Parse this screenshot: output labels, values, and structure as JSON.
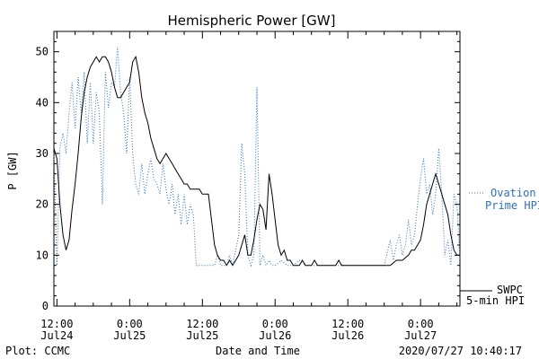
{
  "chart_data": {
    "type": "line",
    "title": "Hemispheric Power [GW]",
    "ylabel": "P [GW]",
    "xlabel": "Date and Time",
    "ylim": [
      0,
      54
    ],
    "yticks": [
      0,
      10,
      20,
      30,
      40,
      50
    ],
    "xlim": [
      -0.5,
      66.5
    ],
    "xticks": [
      {
        "x": 0,
        "line1": "12:00",
        "line2": "Jul24"
      },
      {
        "x": 12,
        "line1": "0:00",
        "line2": "Jul25"
      },
      {
        "x": 24,
        "line1": "12:00",
        "line2": "Jul25"
      },
      {
        "x": 36,
        "line1": "0:00",
        "line2": "Jul26"
      },
      {
        "x": 48,
        "line1": "12:00",
        "line2": "Jul26"
      },
      {
        "x": 60,
        "line1": "0:00",
        "line2": "Jul27"
      }
    ],
    "x_unit": "hours after 2020-07-24 12:00",
    "grid": false,
    "series": [
      {
        "name": "SWPC 5-min HPI",
        "style": "solid",
        "color": "#000000",
        "points": [
          [
            -0.5,
            31
          ],
          [
            0,
            29
          ],
          [
            0.5,
            20
          ],
          [
            1,
            14
          ],
          [
            1.5,
            11
          ],
          [
            2,
            13
          ],
          [
            2.5,
            19
          ],
          [
            3,
            24
          ],
          [
            3.5,
            30
          ],
          [
            4,
            37
          ],
          [
            4.5,
            42
          ],
          [
            5,
            45
          ],
          [
            5.5,
            47
          ],
          [
            6,
            48
          ],
          [
            6.5,
            49
          ],
          [
            7,
            48
          ],
          [
            7.5,
            49
          ],
          [
            8,
            49
          ],
          [
            8.5,
            48
          ],
          [
            9,
            46
          ],
          [
            9.5,
            43
          ],
          [
            10,
            41
          ],
          [
            10.5,
            41
          ],
          [
            11,
            42
          ],
          [
            11.5,
            43
          ],
          [
            12,
            44
          ],
          [
            12.5,
            48
          ],
          [
            13,
            49
          ],
          [
            13.5,
            46
          ],
          [
            14,
            41
          ],
          [
            14.5,
            38
          ],
          [
            15,
            36
          ],
          [
            15.5,
            33
          ],
          [
            16,
            31
          ],
          [
            16.5,
            29
          ],
          [
            17,
            28
          ],
          [
            17.5,
            29
          ],
          [
            18,
            30
          ],
          [
            18.5,
            29
          ],
          [
            19,
            28
          ],
          [
            19.5,
            27
          ],
          [
            20,
            26
          ],
          [
            20.5,
            25
          ],
          [
            21,
            24
          ],
          [
            21.5,
            24
          ],
          [
            22,
            23
          ],
          [
            23,
            23
          ],
          [
            23.5,
            23
          ],
          [
            24,
            22
          ],
          [
            25,
            22
          ],
          [
            25.5,
            17
          ],
          [
            26,
            12
          ],
          [
            26.5,
            10
          ],
          [
            27,
            9
          ],
          [
            27.5,
            9
          ],
          [
            28,
            8
          ],
          [
            28.5,
            9
          ],
          [
            29,
            8
          ],
          [
            29.5,
            9
          ],
          [
            30,
            10
          ],
          [
            30.5,
            12
          ],
          [
            31,
            14
          ],
          [
            31.5,
            10
          ],
          [
            32,
            10
          ],
          [
            32.5,
            13
          ],
          [
            33,
            17
          ],
          [
            33.5,
            20
          ],
          [
            34,
            19
          ],
          [
            34.5,
            15
          ],
          [
            35,
            26
          ],
          [
            35.5,
            22
          ],
          [
            36,
            17
          ],
          [
            36.5,
            12
          ],
          [
            37,
            10
          ],
          [
            37.5,
            11
          ],
          [
            38,
            9
          ],
          [
            38.5,
            9
          ],
          [
            39,
            8
          ],
          [
            40,
            8
          ],
          [
            40.5,
            9
          ],
          [
            41,
            8
          ],
          [
            42,
            8
          ],
          [
            42.5,
            9
          ],
          [
            43,
            8
          ],
          [
            44,
            8
          ],
          [
            45,
            8
          ],
          [
            46,
            8
          ],
          [
            46.5,
            9
          ],
          [
            47,
            8
          ],
          [
            48,
            8
          ],
          [
            49,
            8
          ],
          [
            50,
            8
          ],
          [
            51,
            8
          ],
          [
            52,
            8
          ],
          [
            53,
            8
          ],
          [
            54,
            8
          ],
          [
            55,
            8
          ],
          [
            56,
            9
          ],
          [
            57,
            9
          ],
          [
            58,
            10
          ],
          [
            58.5,
            11
          ],
          [
            59,
            11
          ],
          [
            59.5,
            12
          ],
          [
            60,
            13
          ],
          [
            60.5,
            16
          ],
          [
            61,
            20
          ],
          [
            61.5,
            22
          ],
          [
            62,
            24
          ],
          [
            62.5,
            26
          ],
          [
            63,
            24
          ],
          [
            63.5,
            22
          ],
          [
            64,
            20
          ],
          [
            64.5,
            18
          ],
          [
            65,
            14
          ],
          [
            65.5,
            11
          ],
          [
            66,
            10
          ],
          [
            66.5,
            10
          ]
        ]
      },
      {
        "name": "Ovation Prime HPI",
        "style": "dotted",
        "color": "#2f6fbf",
        "points": [
          [
            -0.5,
            30
          ],
          [
            0,
            8
          ],
          [
            0.5,
            31
          ],
          [
            1,
            34
          ],
          [
            1.5,
            30
          ],
          [
            2,
            38
          ],
          [
            2.5,
            44
          ],
          [
            3,
            35
          ],
          [
            3.5,
            45
          ],
          [
            4,
            38
          ],
          [
            4.5,
            46
          ],
          [
            5,
            32
          ],
          [
            5.5,
            44
          ],
          [
            6,
            32
          ],
          [
            6.5,
            42
          ],
          [
            7,
            38
          ],
          [
            7.5,
            20
          ],
          [
            8,
            46
          ],
          [
            8.5,
            39
          ],
          [
            9,
            44
          ],
          [
            9.5,
            43
          ],
          [
            10,
            51
          ],
          [
            10.5,
            42
          ],
          [
            11,
            38
          ],
          [
            11.5,
            30
          ],
          [
            12,
            45
          ],
          [
            12.5,
            30
          ],
          [
            13,
            24
          ],
          [
            13.5,
            22
          ],
          [
            14,
            28
          ],
          [
            14.5,
            22
          ],
          [
            15,
            26
          ],
          [
            15.5,
            29
          ],
          [
            16,
            25
          ],
          [
            16.5,
            24
          ],
          [
            17,
            22
          ],
          [
            17.5,
            28
          ],
          [
            18,
            23
          ],
          [
            18.5,
            20
          ],
          [
            19,
            24
          ],
          [
            19.5,
            18
          ],
          [
            20,
            22
          ],
          [
            20.5,
            16
          ],
          [
            21,
            22
          ],
          [
            21.5,
            16
          ],
          [
            22,
            20
          ],
          [
            22.5,
            18
          ],
          [
            23,
            8
          ],
          [
            24,
            8
          ],
          [
            25,
            8
          ],
          [
            26,
            8
          ],
          [
            26.5,
            10
          ],
          [
            27,
            8
          ],
          [
            28,
            8
          ],
          [
            28.5,
            10
          ],
          [
            29,
            8
          ],
          [
            30,
            14
          ],
          [
            30.5,
            32
          ],
          [
            31,
            26
          ],
          [
            31.5,
            10
          ],
          [
            32,
            8
          ],
          [
            32.5,
            10
          ],
          [
            33,
            43
          ],
          [
            33.5,
            8
          ],
          [
            34,
            10
          ],
          [
            34.5,
            8
          ],
          [
            35,
            9
          ],
          [
            35.5,
            8
          ],
          [
            36,
            8
          ],
          [
            37,
            9
          ],
          [
            38,
            8
          ],
          [
            39,
            8
          ],
          [
            40,
            9
          ],
          [
            41,
            8
          ],
          [
            42,
            8
          ],
          [
            43,
            8
          ],
          [
            44,
            8
          ],
          [
            45,
            8
          ],
          [
            46,
            8
          ],
          [
            47,
            8
          ],
          [
            48,
            8
          ],
          [
            49,
            8
          ],
          [
            50,
            8
          ],
          [
            51,
            8
          ],
          [
            52,
            8
          ],
          [
            53,
            8
          ],
          [
            54,
            8
          ],
          [
            55,
            13
          ],
          [
            55.5,
            9
          ],
          [
            56,
            12
          ],
          [
            56.5,
            14
          ],
          [
            57,
            10
          ],
          [
            57.5,
            12
          ],
          [
            58,
            17
          ],
          [
            58.5,
            12
          ],
          [
            59,
            14
          ],
          [
            59.5,
            20
          ],
          [
            60,
            25
          ],
          [
            60.5,
            29
          ],
          [
            61,
            22
          ],
          [
            61.5,
            24
          ],
          [
            62,
            18
          ],
          [
            62.5,
            22
          ],
          [
            63,
            31
          ],
          [
            63.5,
            22
          ],
          [
            64,
            10
          ],
          [
            64.5,
            13
          ],
          [
            65,
            8
          ],
          [
            65.5,
            22
          ],
          [
            66,
            20
          ],
          [
            66.5,
            9
          ]
        ]
      }
    ],
    "legend": {
      "placement": "right",
      "ovation_line1": "Ovation",
      "ovation_line2": "Prime HPI",
      "swpc_line1": "SWPC",
      "swpc_line2": "5-min HPI"
    },
    "footer": {
      "left": "Plot: CCMC",
      "center": "Date and Time",
      "right": "2020/07/27 10:40:17"
    }
  }
}
